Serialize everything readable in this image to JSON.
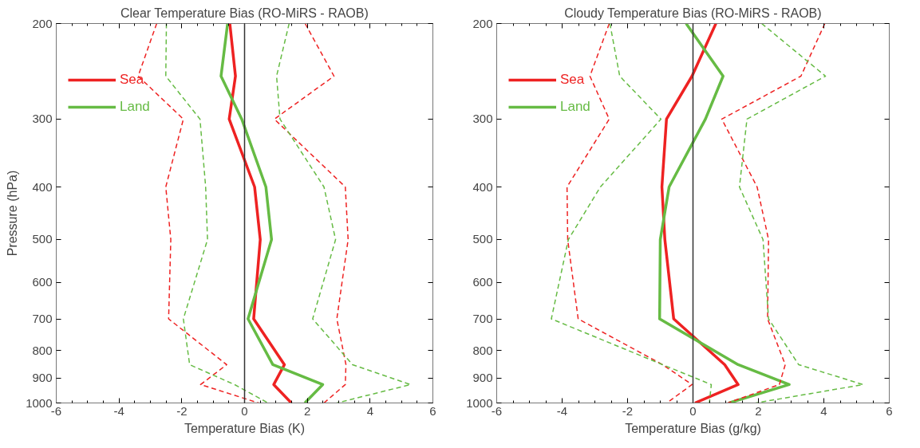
{
  "chart_data": [
    {
      "type": "line",
      "title": "Clear Temperature Bias (RO-MiRS - RAOB)",
      "xlabel": "Temperature Bias (K)",
      "ylabel": "Pressure (hPa)",
      "x": [
        200,
        250,
        300,
        400,
        500,
        700,
        850,
        925,
        1000
      ],
      "series": [
        {
          "name": "Sea",
          "color": "#ee2222",
          "line_style": "solid",
          "values": [
            -0.47,
            -0.29,
            -0.49,
            0.32,
            0.5,
            0.29,
            1.27,
            0.93,
            1.49
          ]
        },
        {
          "name": "Land",
          "color": "#66bb44",
          "line_style": "solid",
          "values": [
            -0.54,
            -0.75,
            -0.09,
            0.68,
            0.86,
            0.11,
            0.9,
            2.49,
            1.92
          ]
        },
        {
          "color": "#ee2222",
          "line_style": "dashed",
          "values": [
            -2.8,
            -3.39,
            -1.95,
            -2.51,
            -2.35,
            -2.42,
            -0.57,
            -1.4,
            0.45
          ]
        },
        {
          "color": "#ee2222",
          "line_style": "dashed",
          "values": [
            1.93,
            2.85,
            0.95,
            3.21,
            3.3,
            2.94,
            3.23,
            3.21,
            2.53
          ]
        },
        {
          "color": "#66bb44",
          "line_style": "dashed",
          "values": [
            -2.49,
            -2.51,
            -1.42,
            -1.24,
            -1.18,
            -1.95,
            -1.75,
            -0.32,
            0.75
          ]
        },
        {
          "color": "#66bb44",
          "line_style": "dashed",
          "values": [
            1.42,
            1.02,
            1.13,
            2.53,
            2.9,
            2.17,
            3.44,
            5.29,
            2.94
          ]
        }
      ],
      "orientation": "horizontal",
      "log": "y",
      "xlim": [
        -6,
        6
      ],
      "xticks": [
        -6,
        -4,
        -2,
        0,
        2,
        4,
        6
      ],
      "ylim": [
        1000,
        200
      ],
      "yticks": [
        200,
        300,
        400,
        500,
        600,
        700,
        800,
        900,
        1000
      ],
      "ref_lines": [
        {
          "axis": "x",
          "value": 0,
          "color": "#333333"
        }
      ],
      "grid": false,
      "legend": "top left"
    },
    {
      "type": "line",
      "title": "Cloudy Temperature Bias (RO-MiRS - RAOB)",
      "xlabel": "Temperature Bias (g/kg)",
      "x": [
        200,
        250,
        300,
        400,
        500,
        700,
        850,
        925,
        1000
      ],
      "series": [
        {
          "name": "Sea",
          "color": "#ee2222",
          "line_style": "solid",
          "values": [
            0.7,
            -0.03,
            -0.81,
            -0.95,
            -0.86,
            -0.59,
            0.97,
            1.38,
            0.06
          ]
        },
        {
          "name": "Land",
          "color": "#66bb44",
          "line_style": "solid",
          "values": [
            -0.21,
            0.92,
            0.38,
            -0.73,
            -1.0,
            -1.02,
            1.38,
            2.94,
            1.1
          ]
        },
        {
          "color": "#ee2222",
          "line_style": "dashed",
          "values": [
            -2.56,
            -3.15,
            -2.56,
            -3.85,
            -3.83,
            -3.51,
            -0.93,
            -0.03,
            -0.8
          ]
        },
        {
          "color": "#ee2222",
          "line_style": "dashed",
          "values": [
            4.03,
            3.3,
            0.88,
            1.96,
            2.31,
            2.28,
            2.82,
            2.64,
            1.06
          ]
        },
        {
          "color": "#66bb44",
          "line_style": "dashed",
          "values": [
            -2.54,
            -2.24,
            -0.98,
            -2.83,
            -3.81,
            -4.33,
            -0.93,
            0.56,
            0.5
          ]
        },
        {
          "color": "#66bb44",
          "line_style": "dashed",
          "values": [
            2.1,
            4.05,
            1.65,
            1.42,
            2.14,
            2.31,
            3.23,
            5.2,
            1.92
          ]
        }
      ],
      "orientation": "horizontal",
      "log": "y",
      "xlim": [
        -6,
        6
      ],
      "xticks": [
        -6,
        -4,
        -2,
        0,
        2,
        4,
        6
      ],
      "ylim": [
        1000,
        200
      ],
      "yticks": [
        200,
        300,
        400,
        500,
        600,
        700,
        800,
        900,
        1000
      ],
      "ref_lines": [
        {
          "axis": "x",
          "value": 0,
          "color": "#333333"
        }
      ],
      "grid": false,
      "legend": "top left"
    }
  ]
}
